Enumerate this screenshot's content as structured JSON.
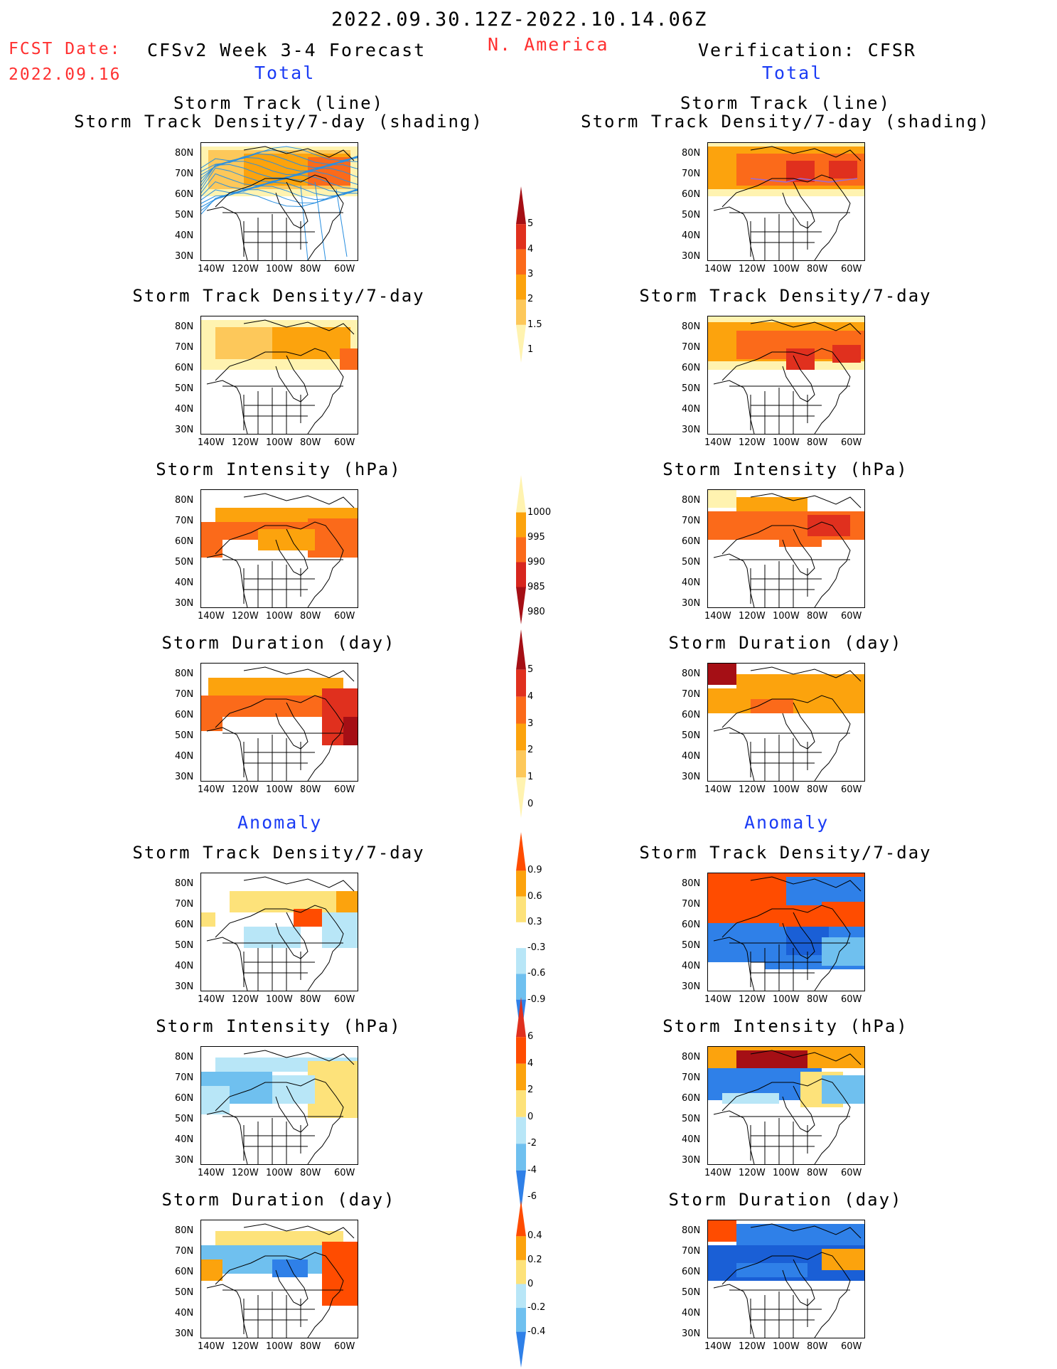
{
  "header": {
    "period": "2022.09.30.12Z-2022.10.14.06Z",
    "fcst_label": "FCST Date:",
    "fcst_date": "2022.09.16",
    "model": "CFSv2 Week 3-4 Forecast",
    "region": "N. America",
    "verification": "Verification: CFSR",
    "left_total": "Total",
    "right_total": "Total",
    "left_anomaly": "Anomaly",
    "right_anomaly": "Anomaly"
  },
  "titles": {
    "track_line": "Storm Track (line)",
    "track_shading": "Storm Track Density/7-day (shading)",
    "density": "Storm Track Density/7-day",
    "intensity": "Storm Intensity (hPa)",
    "duration": "Storm Duration (day)"
  },
  "axes": {
    "lat_labels": [
      "80N",
      "70N",
      "60N",
      "50N",
      "40N",
      "30N"
    ],
    "lon_labels": [
      "140W",
      "120W",
      "100W",
      "80W",
      "60W"
    ]
  },
  "colorbars": {
    "density_total": {
      "labels": [
        "5",
        "4",
        "3",
        "2",
        "1.5",
        "1"
      ],
      "colors": [
        "#a50f15",
        "#e0301e",
        "#fb6a1a",
        "#fca30d",
        "#fdc85a",
        "#fff3b0"
      ]
    },
    "intensity_total": {
      "labels": [
        "1000",
        "995",
        "990",
        "985",
        "980"
      ],
      "colors": [
        "#fff3b0",
        "#fca30d",
        "#fb6a1a",
        "#d7261e",
        "#a50f15"
      ]
    },
    "duration_total": {
      "labels": [
        "5",
        "4",
        "3",
        "2",
        "1",
        "0"
      ],
      "colors": [
        "#a50f15",
        "#e0301e",
        "#fb6a1a",
        "#fca30d",
        "#fdc85a",
        "#fff3b0"
      ]
    },
    "density_anom": {
      "labels": [
        "0.9",
        "0.6",
        "0.3",
        "-0.3",
        "-0.6",
        "-0.9"
      ],
      "colors": [
        "#ff4c00",
        "#fca30d",
        "#fde27a",
        "#ffffff",
        "#b8e6f7",
        "#6fc0ef",
        "#2f80e8"
      ]
    },
    "intensity_anom": {
      "labels": [
        "6",
        "4",
        "2",
        "0",
        "-2",
        "-4",
        "-6"
      ],
      "colors": [
        "#e0301e",
        "#ff4c00",
        "#fca30d",
        "#fde27a",
        "#b8e6f7",
        "#6fc0ef",
        "#2f80e8"
      ]
    },
    "duration_anom": {
      "labels": [
        "0.4",
        "0.2",
        "0",
        "-0.2",
        "-0.4"
      ],
      "colors": [
        "#ff4c00",
        "#fca30d",
        "#fde27a",
        "#b8e6f7",
        "#6fc0ef",
        "#2f80e8"
      ]
    }
  }
}
